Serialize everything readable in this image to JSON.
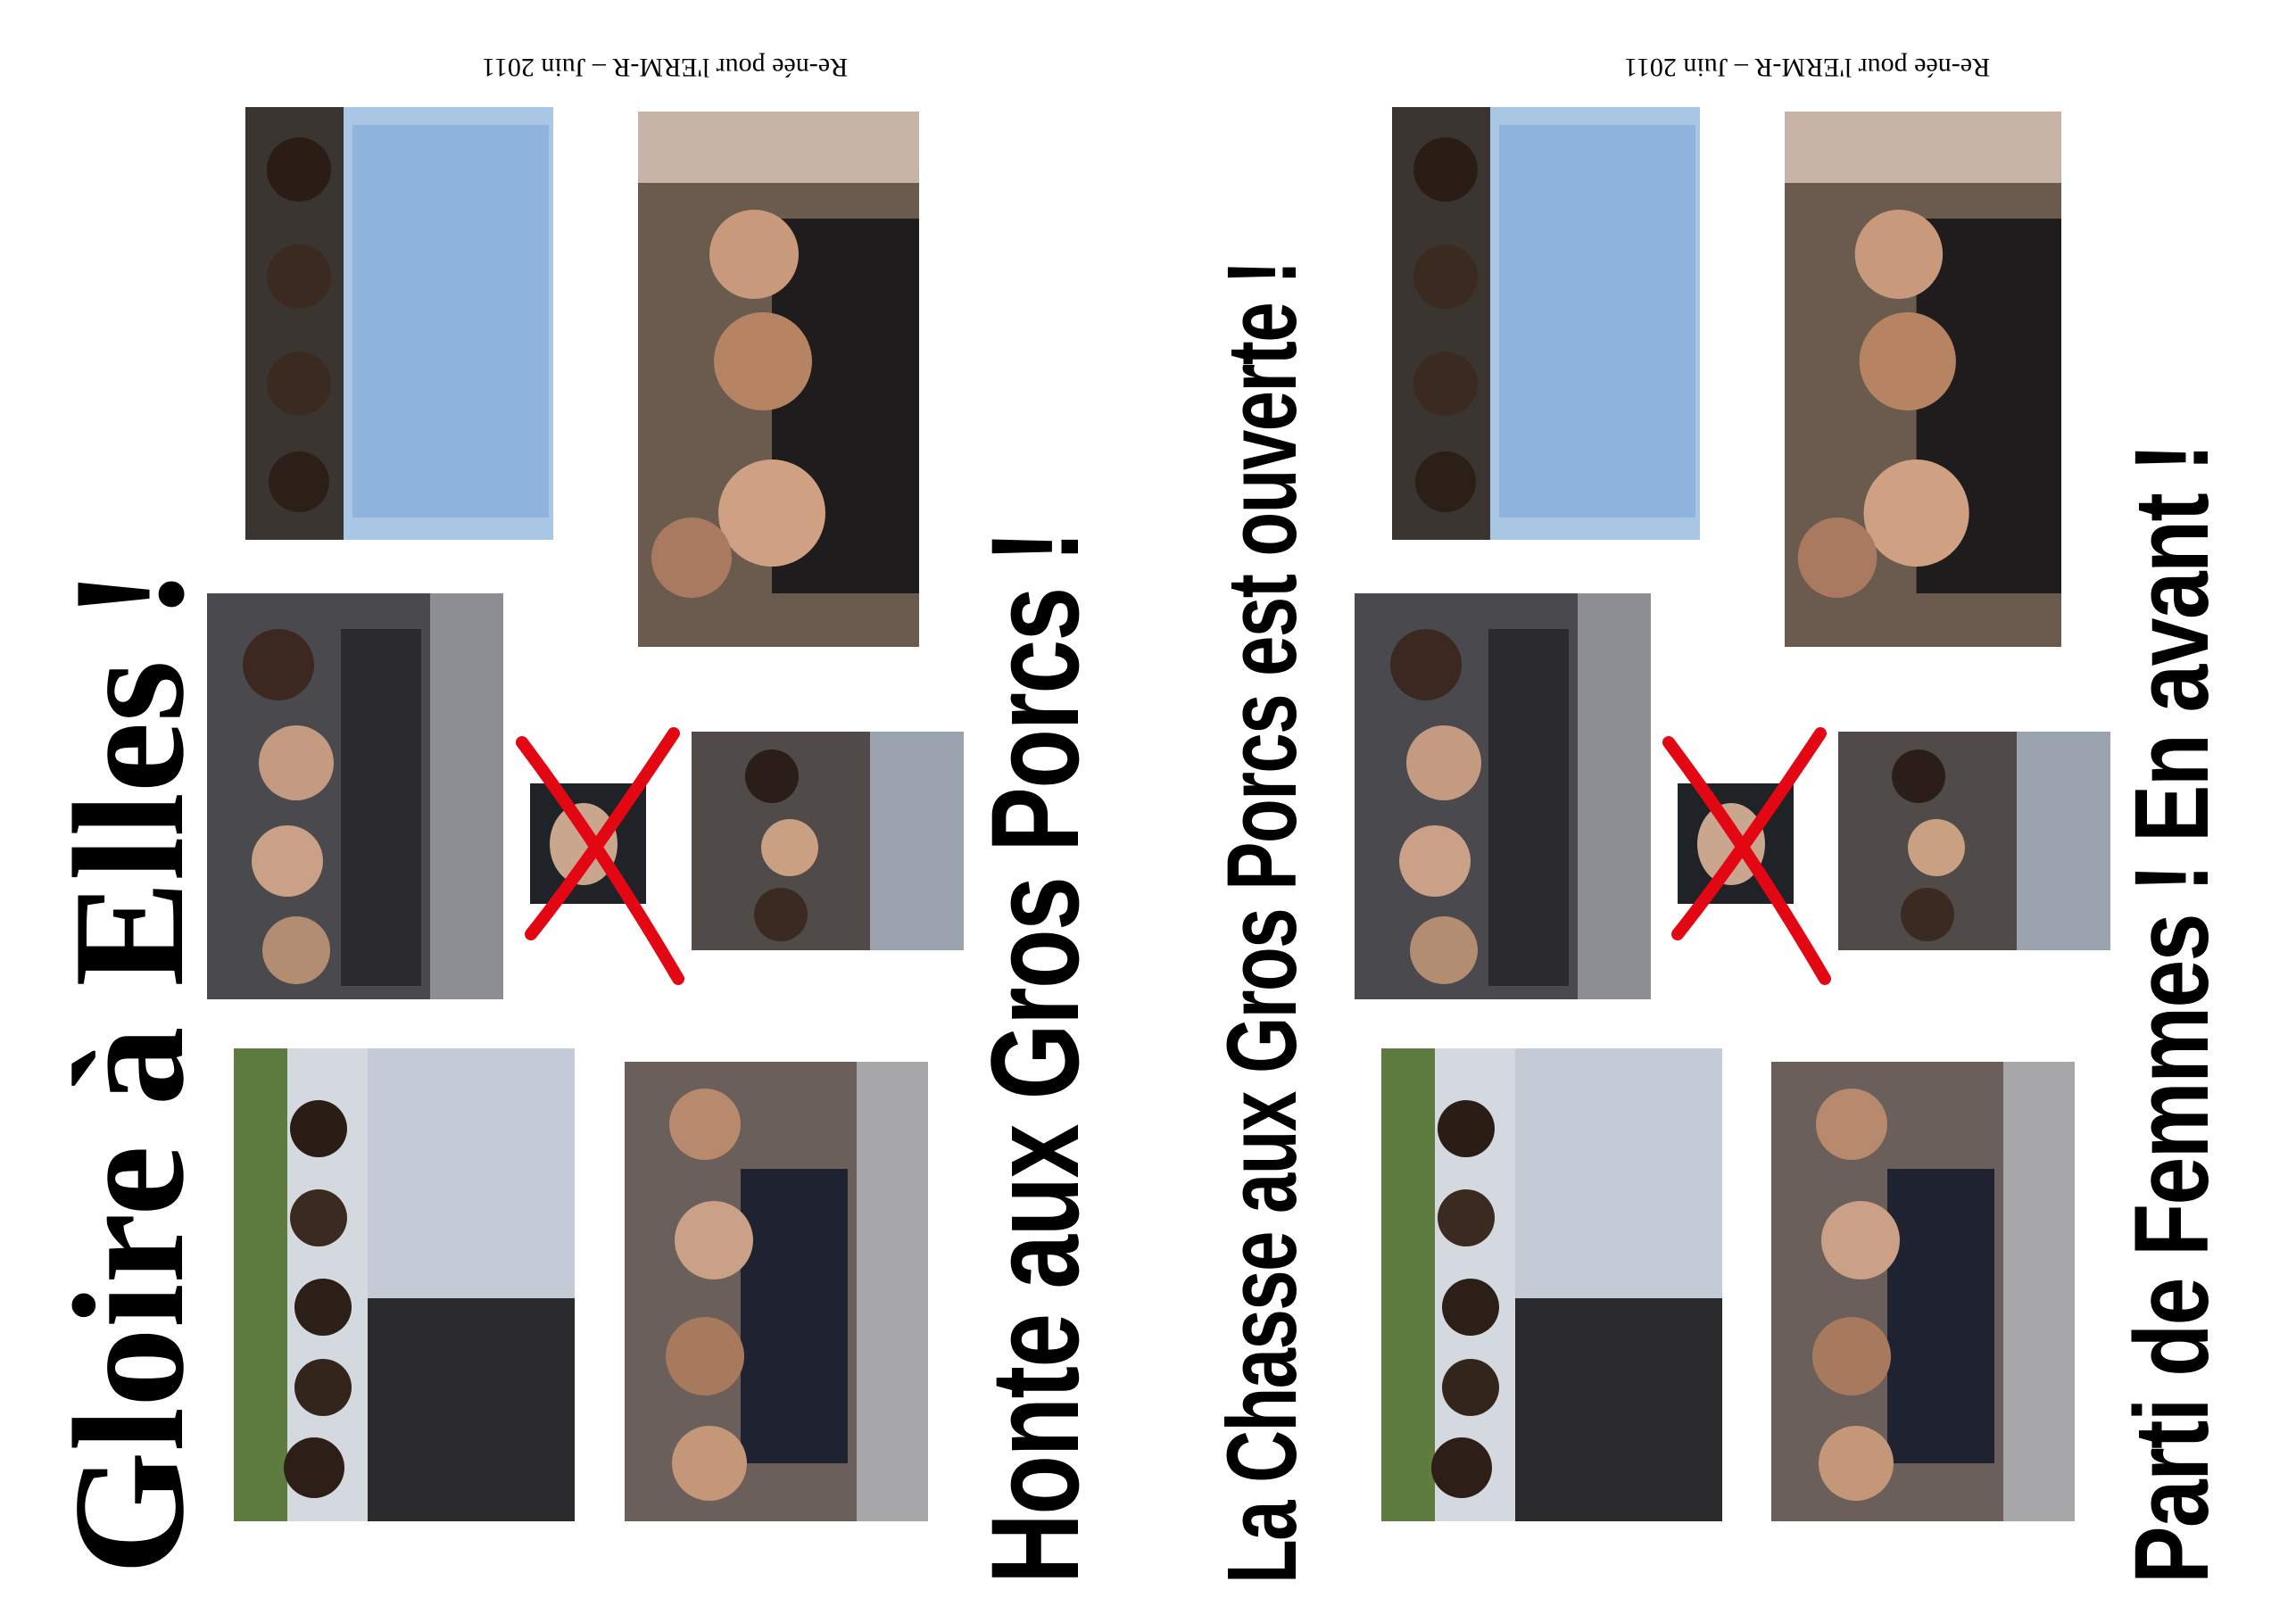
{
  "panels": [
    {
      "title_left": "Gloire à Elles !",
      "title_right": "Honte aux Gros Porcs !",
      "credit": "Re-née pour l'ERM-R – Juin 2011"
    },
    {
      "title_left": "La Chasse aux Gros Porcs est ouverte !",
      "title_right": "Parti de Femmes ! En avant !",
      "credit": "Re-née pour l'ERM-R – Juin 2011"
    }
  ],
  "colors": {
    "cross": "#e30613",
    "text": "#000000",
    "background": "#ffffff"
  }
}
